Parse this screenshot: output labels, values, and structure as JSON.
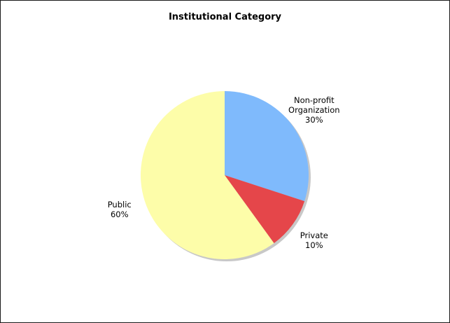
{
  "chart_data": {
    "type": "pie",
    "title": "Institutional Category",
    "slices": [
      {
        "label": "Non-profit Organization",
        "label_lines": [
          "Non-profit",
          "Organization"
        ],
        "value": 30,
        "percent_label": "30%",
        "color": "#7fbafc"
      },
      {
        "label": "Private",
        "label_lines": [
          "Private"
        ],
        "value": 10,
        "percent_label": "10%",
        "color": "#e5464a"
      },
      {
        "label": "Public",
        "label_lines": [
          "Public"
        ],
        "value": 60,
        "percent_label": "60%",
        "color": "#fdfda9"
      }
    ],
    "start_angle_deg": 0,
    "direction": "clockwise",
    "legend": "none",
    "labels": "outside"
  }
}
